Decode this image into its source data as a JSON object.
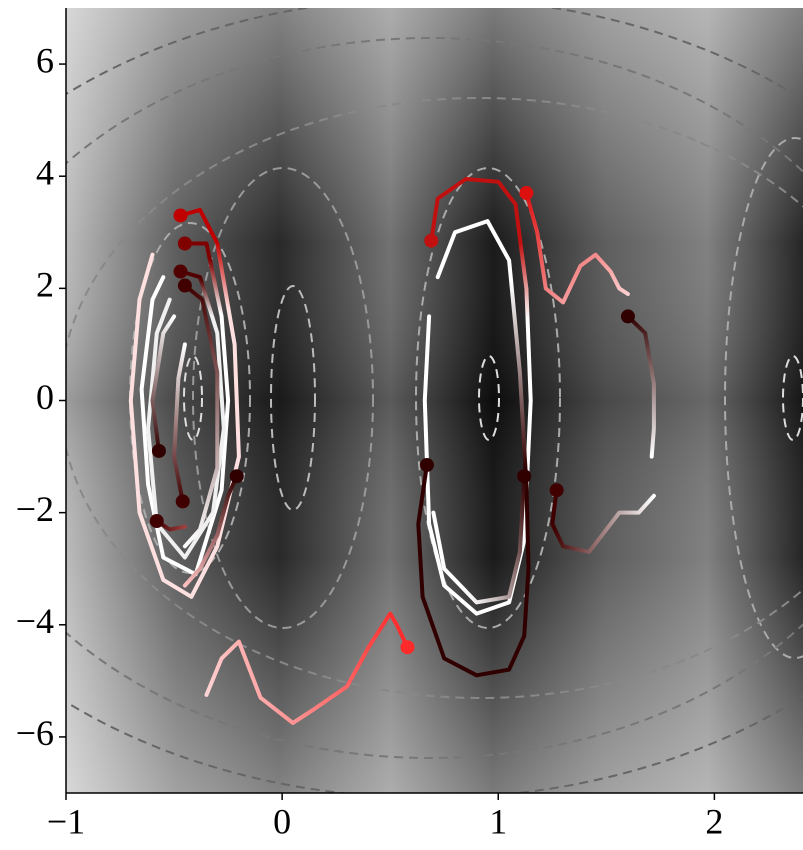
{
  "chart_data": {
    "type": "trajectory",
    "xlim": [
      -1,
      2.41
    ],
    "ylim": [
      -7,
      7
    ],
    "xticks": [
      {
        "value": -1,
        "label": "−1"
      },
      0,
      1,
      2
    ],
    "yticks": [
      {
        "value": -6,
        "label": "−6"
      },
      {
        "value": -4,
        "label": "−4"
      },
      {
        "value": -2,
        "label": "−2"
      },
      0,
      2,
      4,
      6
    ],
    "series": [
      {
        "colors": [
          "#ff2a2a",
          "#ffd4d4"
        ],
        "x": [
          0.58,
          0.53,
          0.5,
          0.4,
          0.3,
          0.15,
          0.05,
          -0.1,
          -0.2,
          -0.28,
          -0.35
        ],
        "y": [
          -4.4,
          -4.0,
          -3.8,
          -4.4,
          -5.1,
          -5.5,
          -5.75,
          -5.3,
          -4.3,
          -4.6,
          -5.25
        ]
      },
      {
        "colors": [
          "#c00000",
          "#ffe0e0"
        ],
        "x": [
          -0.47,
          -0.38,
          -0.3,
          -0.22,
          -0.2,
          -0.3,
          -0.42,
          -0.55,
          -0.66,
          -0.7,
          -0.66,
          -0.6
        ],
        "y": [
          3.3,
          3.4,
          2.8,
          1.0,
          -1.0,
          -2.6,
          -3.5,
          -3.2,
          -2.0,
          0,
          1.8,
          2.6
        ]
      },
      {
        "colors": [
          "#800000",
          "#ffffff"
        ],
        "x": [
          -0.45,
          -0.35,
          -0.28,
          -0.25,
          -0.28,
          -0.4,
          -0.55,
          -0.62,
          -0.65,
          -0.6,
          -0.55
        ],
        "y": [
          2.8,
          2.8,
          1.5,
          0,
          -1.6,
          -3.1,
          -2.8,
          -1.5,
          0.2,
          1.8,
          2.2
        ]
      },
      {
        "colors": [
          "#500000",
          "#f0f0f0"
        ],
        "x": [
          -0.47,
          -0.38,
          -0.3,
          -0.27,
          -0.32,
          -0.45,
          -0.58,
          -0.62,
          -0.58,
          -0.52
        ],
        "y": [
          2.3,
          2.2,
          1.2,
          -0.5,
          -2.0,
          -2.8,
          -2.2,
          -0.5,
          1.2,
          1.8
        ]
      },
      {
        "colors": [
          "#400000",
          "#ffffff"
        ],
        "x": [
          -0.45,
          -0.37,
          -0.3,
          -0.3,
          -0.38,
          -0.45
        ],
        "y": [
          2.05,
          1.8,
          0.5,
          -1.2,
          -2.3,
          -2.6
        ]
      },
      {
        "colors": [
          "#400000",
          "#ffffff"
        ],
        "x": [
          -0.46,
          -0.5,
          -0.48,
          -0.45
        ],
        "y": [
          -1.8,
          -1.0,
          0.4,
          1.0
        ]
      },
      {
        "colors": [
          "#300000",
          "#ffffff"
        ],
        "x": [
          -0.57,
          -0.6,
          -0.55,
          -0.5
        ],
        "y": [
          -0.9,
          0,
          1.2,
          1.5
        ]
      },
      {
        "colors": [
          "#300000",
          "#ffc0c0"
        ],
        "x": [
          -0.21,
          -0.25,
          -0.3,
          -0.38,
          -0.45
        ],
        "y": [
          -1.35,
          -1.7,
          -2.4,
          -3.0,
          -3.3
        ]
      },
      {
        "colors": [
          "#400000",
          "#a04040"
        ],
        "x": [
          -0.58,
          -0.52,
          -0.45
        ],
        "y": [
          -2.15,
          -2.3,
          -2.25
        ]
      },
      {
        "colors": [
          "#c01010",
          "#ffffff"
        ],
        "x": [
          0.69,
          0.72,
          0.85,
          1.0,
          1.08,
          1.13,
          1.15,
          1.12,
          1.05,
          0.9,
          0.75,
          0.68,
          0.66,
          0.68
        ],
        "y": [
          2.85,
          3.6,
          3.95,
          3.9,
          3.5,
          2.0,
          0,
          -2.5,
          -3.6,
          -3.8,
          -3.3,
          -2.2,
          0,
          1.5
        ]
      },
      {
        "colors": [
          "#dd1010",
          "#ffd0d0"
        ],
        "x": [
          1.13,
          1.18,
          1.22,
          1.3,
          1.38,
          1.45,
          1.52,
          1.56,
          1.6
        ],
        "y": [
          3.7,
          3.0,
          2.0,
          1.75,
          2.4,
          2.6,
          2.3,
          2.0,
          1.9
        ]
      },
      {
        "colors": [
          "#300000",
          "#ffffff"
        ],
        "x": [
          1.6,
          1.68,
          1.72,
          1.72,
          1.71
        ],
        "y": [
          1.5,
          1.2,
          0.3,
          -0.5,
          -1.0
        ]
      },
      {
        "colors": [
          "#300000",
          "#ffffff"
        ],
        "x": [
          0.67,
          0.63,
          0.65,
          0.75,
          0.9,
          1.05,
          1.12,
          1.14,
          1.13,
          1.1,
          1.05,
          0.95,
          0.8,
          0.72
        ],
        "y": [
          -1.15,
          -2.2,
          -3.5,
          -4.6,
          -4.9,
          -4.8,
          -4.2,
          -3.0,
          -1.5,
          0.5,
          2.5,
          3.2,
          3.0,
          2.2
        ]
      },
      {
        "colors": [
          "#300000",
          "#ffffff"
        ],
        "x": [
          1.12,
          1.1,
          1.05,
          0.9,
          0.75,
          0.7
        ],
        "y": [
          -1.35,
          -2.7,
          -3.5,
          -3.6,
          -3.0,
          -2.0
        ]
      },
      {
        "colors": [
          "#400000",
          "#ffffff"
        ],
        "x": [
          1.27,
          1.25,
          1.3,
          1.42,
          1.48,
          1.56,
          1.65,
          1.72
        ],
        "y": [
          -1.6,
          -2.2,
          -2.6,
          -2.7,
          -2.4,
          -2.0,
          -2.0,
          -1.7
        ]
      }
    ]
  }
}
